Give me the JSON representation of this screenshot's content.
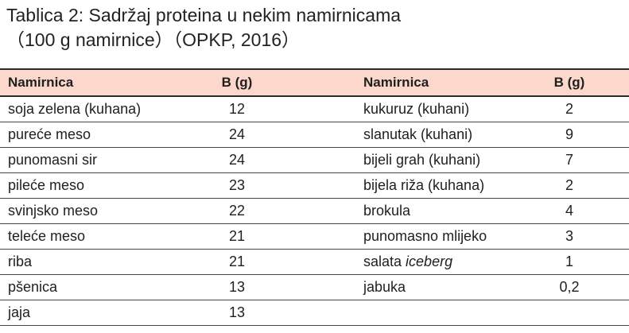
{
  "title": {
    "line1": "Tablica 2: Sadržaj proteina u nekim namirnicama",
    "line2": "（100 g namirnice）（OPKP, 2016）"
  },
  "table": {
    "headers": [
      "Namirnica",
      "B (g)",
      "Namirnica",
      "B (g)"
    ],
    "rows": [
      {
        "left_food": "soja zelena (kuhana)",
        "left_value": "12",
        "right_food": "kukuruz (kuhani)",
        "right_value": "2"
      },
      {
        "left_food": "pureće meso",
        "left_value": "24",
        "right_food": "slanutak (kuhani)",
        "right_value": "9"
      },
      {
        "left_food": "punomasni sir",
        "left_value": "24",
        "right_food": "bijeli grah (kuhani)",
        "right_value": "7"
      },
      {
        "left_food": "pileće meso",
        "left_value": "23",
        "right_food": "bijela riža (kuhana)",
        "right_value": "2"
      },
      {
        "left_food": "svinjsko meso",
        "left_value": "22",
        "right_food": "brokula",
        "right_value": "4"
      },
      {
        "left_food": "teleće meso",
        "left_value": "21",
        "right_food": "punomasno mlijeko",
        "right_value": "3"
      },
      {
        "left_food": "riba",
        "left_value": "21",
        "right_food_prefix": "salata ",
        "right_food_italic": "iceberg",
        "right_value": "1"
      },
      {
        "left_food": "pšenica",
        "left_value": "13",
        "right_food": "jabuka",
        "right_value": "0,2"
      },
      {
        "left_food": "jaja",
        "left_value": "13",
        "right_food": "",
        "right_value": ""
      }
    ]
  }
}
